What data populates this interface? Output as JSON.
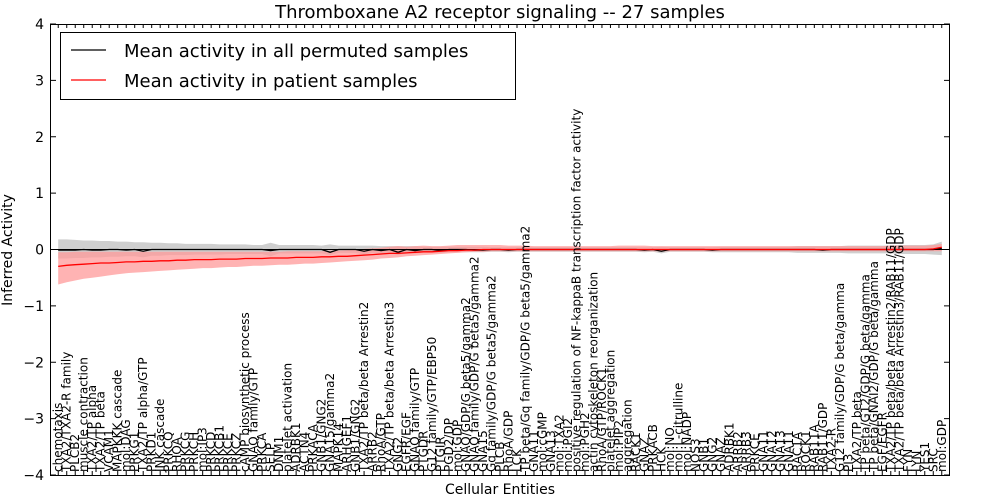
{
  "chart_data": {
    "type": "line",
    "title": "Thromboxane A2 receptor signaling -- 27 samples",
    "xlabel": "Cellular Entities",
    "ylabel": "Inferred Activity",
    "ylim": [
      -4,
      4
    ],
    "yticks": [
      "4",
      "3",
      "2",
      "1",
      "0",
      "−1",
      "−2",
      "−3",
      "−4"
    ],
    "grid": false,
    "legend_position": "top-left",
    "colors": {
      "all": "#000000",
      "all_band": "#bfbfbf",
      "patient": "#ff0000",
      "patient_band": "#ff9a9a"
    },
    "categories": [
      "chemotaxis",
      "TXA2/TXA2-R family",
      "PLCB2",
      "muscle contraction",
      "TXA2/TP alpha",
      "TXA2/TP beta",
      "VCAM1",
      "MAPKKK cascade",
      "mol:DAG",
      "PRKG1",
      "TXA2/TP alpha/GTP",
      "PRKD1",
      "JNK cascade",
      "PRKCQ",
      "RHOA",
      "PRKCG",
      "PRKCH",
      "mol:IP3",
      "PRKCD",
      "PRKCB1",
      "PRKCE",
      "PRKCZ",
      "cAMP biosynthetic process",
      "GNAQ family/GTP",
      "PRKCA",
      "SELP",
      "DNM1",
      "platelet activation",
      "ADRBK1",
      "ACTN4",
      "PRKACA",
      "GNB1/GNG2",
      "GNA15/gamma2",
      "MAPK14",
      "ARHGEF1",
      "GNB1/GNG2",
      "TXA2/TP beta/beta Arrestin2",
      "ARRB2",
      "RhoA/GTP",
      "TXA2/TP beta/beta Arrestin3",
      "GNG2",
      "EGFR/EGF",
      "GNAQ family/GTP",
      "PTGDR",
      "G12 family/GTP/EBP50",
      "PTGIR",
      "PGD2/DP",
      "mol:GDP",
      "GNAQ/GDP/G beta5/gamma2",
      "GNAQ family/GDP/G beta5/gamma2",
      "GNA15",
      "Gq family/GDP/G beta5/gamma2",
      "PLCB",
      "RhoA/GDP",
      "LCK",
      "TP beta/Gq family/GDP/G beta5/gamma2",
      "GNA11",
      "mol:cGMP",
      "GNA13",
      "mol:TXA2",
      "mol:PGI2",
      "positive regulation of NF-kappaB transcription factor activity",
      "mol:PGH2",
      "actin cytoskeleton reorganization",
      "RhoA/GTP/ROCK1",
      "platelet aggregation",
      "mol:PIP2",
      "aggregation",
      "RACK1",
      "GNAZ",
      "PRKACB",
      "HCK",
      "mol:NO",
      "mol:L-citrulline",
      "mol:NADP",
      "NOS3",
      "GNB1",
      "GNG2",
      "GNAZ",
      "ADRBK1",
      "ARRB2",
      "ARRB3",
      "PRKCE",
      "GNA11",
      "GNA12",
      "GNA13",
      "GNA11",
      "RAC1A",
      "ROCK1",
      "RAB11A",
      "RAB11/GDP",
      "TXA2-R",
      "G12 family/GDP/G beta/gamma",
      "PI3",
      "TXA2/TP beta",
      "TP beta/G12/GDP/G beta/gamma",
      "TP beta/GNAI2/GDP/G beta/gamma",
      "EGF/EGFR",
      "TXA2/TP beta/beta Arrestin2/RAB11/GDP",
      "TXA2/TP beta/beta Arrestin3/RAB11/GDP",
      "FYN",
      "LYN",
      "YES1",
      "SRC",
      "mol:GDP"
    ],
    "series": [
      {
        "name": "Mean activity in all permuted samples",
        "line": [
          -0.01,
          -0.01,
          -0.01,
          0.0,
          -0.01,
          -0.01,
          0.0,
          0.0,
          -0.01,
          0.0,
          -0.03,
          0.0,
          0.0,
          0.0,
          0.0,
          0.0,
          0.0,
          0.0,
          0.0,
          0.0,
          0.0,
          0.0,
          0.0,
          0.0,
          0.0,
          -0.02,
          0.0,
          0.0,
          0.0,
          0.0,
          0.0,
          0.0,
          -0.05,
          0.0,
          0.0,
          0.0,
          -0.03,
          0.0,
          -0.02,
          0.0,
          -0.05,
          0.0,
          -0.02,
          0.0,
          0.0,
          -0.02,
          0.0,
          0.0,
          0.0,
          -0.01,
          -0.01,
          0.0,
          0.0,
          -0.01,
          0.0,
          0.0,
          0.0,
          0.0,
          0.0,
          0.0,
          0.0,
          0.0,
          0.0,
          0.0,
          0.0,
          0.0,
          0.0,
          0.0,
          0.0,
          -0.01,
          0.0,
          -0.03,
          0.0,
          0.0,
          0.0,
          0.0,
          0.0,
          -0.01,
          0.0,
          0.0,
          0.0,
          0.0,
          0.0,
          0.0,
          0.0,
          0.0,
          0.0,
          0.0,
          0.0,
          0.0,
          -0.01,
          0.0,
          0.0,
          0.0,
          0.0,
          0.0,
          0.0,
          0.0,
          0.0,
          0.0,
          0.0,
          0.0,
          0.0,
          0.0,
          0.02
        ],
        "band_upper": [
          0.18,
          0.18,
          0.17,
          0.16,
          0.16,
          0.15,
          0.15,
          0.14,
          0.14,
          0.13,
          0.13,
          0.12,
          0.12,
          0.11,
          0.11,
          0.1,
          0.1,
          0.1,
          0.1,
          0.09,
          0.09,
          0.09,
          0.09,
          0.08,
          0.08,
          0.12,
          0.08,
          0.08,
          0.08,
          0.08,
          0.08,
          0.07,
          0.09,
          0.07,
          0.07,
          0.07,
          0.07,
          0.07,
          0.06,
          0.06,
          0.06,
          0.06,
          0.06,
          0.05,
          0.05,
          0.05,
          0.05,
          0.05,
          0.05,
          0.05,
          0.05,
          0.04,
          0.04,
          0.04,
          0.04,
          0.04,
          0.04,
          0.04,
          0.04,
          0.04,
          0.04,
          0.04,
          0.04,
          0.04,
          0.04,
          0.04,
          0.04,
          0.04,
          0.04,
          0.04,
          0.04,
          0.05,
          0.04,
          0.04,
          0.04,
          0.04,
          0.04,
          0.04,
          0.05,
          0.05,
          0.05,
          0.05,
          0.05,
          0.05,
          0.05,
          0.05,
          0.05,
          0.06,
          0.06,
          0.06,
          0.06,
          0.06,
          0.06,
          0.07,
          0.07,
          0.07,
          0.07,
          0.07,
          0.07,
          0.08,
          0.08,
          0.08,
          0.08,
          0.09,
          0.14
        ],
        "band_lower": [
          -0.16,
          -0.16,
          -0.15,
          -0.15,
          -0.14,
          -0.14,
          -0.13,
          -0.13,
          -0.12,
          -0.12,
          -0.14,
          -0.11,
          -0.11,
          -0.1,
          -0.1,
          -0.1,
          -0.09,
          -0.09,
          -0.09,
          -0.09,
          -0.08,
          -0.08,
          -0.08,
          -0.08,
          -0.08,
          -0.12,
          -0.07,
          -0.07,
          -0.07,
          -0.07,
          -0.07,
          -0.07,
          -0.1,
          -0.06,
          -0.06,
          -0.06,
          -0.09,
          -0.06,
          -0.08,
          -0.06,
          -0.1,
          -0.05,
          -0.07,
          -0.05,
          -0.05,
          -0.06,
          -0.05,
          -0.05,
          -0.05,
          -0.05,
          -0.05,
          -0.04,
          -0.04,
          -0.05,
          -0.04,
          -0.04,
          -0.04,
          -0.04,
          -0.04,
          -0.04,
          -0.04,
          -0.04,
          -0.04,
          -0.04,
          -0.04,
          -0.04,
          -0.04,
          -0.04,
          -0.04,
          -0.05,
          -0.04,
          -0.07,
          -0.04,
          -0.04,
          -0.04,
          -0.04,
          -0.04,
          -0.05,
          -0.05,
          -0.05,
          -0.05,
          -0.05,
          -0.05,
          -0.05,
          -0.05,
          -0.05,
          -0.05,
          -0.06,
          -0.06,
          -0.06,
          -0.06,
          -0.06,
          -0.06,
          -0.07,
          -0.07,
          -0.07,
          -0.07,
          -0.07,
          -0.07,
          -0.08,
          -0.08,
          -0.08,
          -0.08,
          -0.09,
          -0.1
        ]
      },
      {
        "name": "Mean activity in patient samples",
        "line": [
          -0.3,
          -0.28,
          -0.27,
          -0.26,
          -0.25,
          -0.24,
          -0.24,
          -0.23,
          -0.22,
          -0.22,
          -0.21,
          -0.21,
          -0.2,
          -0.2,
          -0.19,
          -0.19,
          -0.18,
          -0.18,
          -0.18,
          -0.17,
          -0.17,
          -0.17,
          -0.16,
          -0.16,
          -0.16,
          -0.15,
          -0.15,
          -0.15,
          -0.14,
          -0.14,
          -0.14,
          -0.13,
          -0.13,
          -0.12,
          -0.12,
          -0.11,
          -0.1,
          -0.09,
          -0.08,
          -0.07,
          -0.07,
          -0.06,
          -0.05,
          -0.04,
          -0.04,
          -0.03,
          -0.02,
          -0.02,
          -0.01,
          -0.01,
          0.0,
          0.0,
          0.0,
          0.0,
          0.0,
          0.0,
          0.0,
          0.0,
          0.0,
          0.0,
          0.0,
          0.0,
          0.0,
          0.0,
          0.0,
          0.0,
          0.0,
          0.0,
          0.0,
          0.0,
          0.0,
          0.0,
          0.0,
          0.0,
          0.0,
          0.0,
          0.0,
          0.0,
          0.0,
          0.0,
          0.0,
          0.0,
          0.0,
          0.0,
          0.0,
          0.0,
          0.0,
          0.0,
          0.0,
          0.0,
          0.0,
          0.0,
          0.0,
          0.0,
          0.0,
          0.0,
          0.0,
          0.0,
          0.0,
          0.0,
          0.0,
          0.0,
          0.0,
          0.01,
          0.04
        ],
        "band_upper": [
          -0.05,
          -0.05,
          -0.04,
          -0.04,
          -0.04,
          -0.04,
          -0.04,
          -0.04,
          -0.04,
          -0.04,
          -0.04,
          -0.04,
          -0.04,
          -0.04,
          -0.04,
          -0.04,
          -0.04,
          -0.04,
          -0.04,
          -0.04,
          -0.04,
          -0.04,
          -0.04,
          -0.04,
          -0.04,
          -0.04,
          -0.04,
          -0.03,
          -0.03,
          -0.03,
          -0.03,
          -0.03,
          -0.02,
          -0.02,
          -0.01,
          0.0,
          0.01,
          0.02,
          0.03,
          0.05,
          0.06,
          0.05,
          0.06,
          0.07,
          0.06,
          0.06,
          0.07,
          0.08,
          0.08,
          0.08,
          0.08,
          0.08,
          0.08,
          0.07,
          0.07,
          0.07,
          0.06,
          0.06,
          0.06,
          0.06,
          0.06,
          0.06,
          0.06,
          0.06,
          0.06,
          0.06,
          0.07,
          0.07,
          0.07,
          0.07,
          0.06,
          0.06,
          0.06,
          0.06,
          0.06,
          0.06,
          0.06,
          0.06,
          0.06,
          0.06,
          0.06,
          0.06,
          0.06,
          0.06,
          0.06,
          0.06,
          0.06,
          0.06,
          0.06,
          0.06,
          0.06,
          0.06,
          0.06,
          0.06,
          0.06,
          0.06,
          0.06,
          0.06,
          0.07,
          0.07,
          0.07,
          0.07,
          0.07,
          0.08,
          0.1
        ],
        "band_lower": [
          -0.62,
          -0.58,
          -0.55,
          -0.52,
          -0.5,
          -0.48,
          -0.46,
          -0.44,
          -0.42,
          -0.41,
          -0.4,
          -0.39,
          -0.38,
          -0.37,
          -0.36,
          -0.35,
          -0.34,
          -0.33,
          -0.33,
          -0.32,
          -0.31,
          -0.31,
          -0.3,
          -0.29,
          -0.29,
          -0.28,
          -0.27,
          -0.27,
          -0.26,
          -0.25,
          -0.25,
          -0.24,
          -0.23,
          -0.22,
          -0.21,
          -0.2,
          -0.19,
          -0.18,
          -0.16,
          -0.15,
          -0.14,
          -0.12,
          -0.11,
          -0.1,
          -0.09,
          -0.08,
          -0.07,
          -0.06,
          -0.05,
          -0.04,
          -0.04,
          -0.03,
          -0.03,
          -0.03,
          -0.03,
          -0.03,
          -0.03,
          -0.03,
          -0.03,
          -0.03,
          -0.03,
          -0.03,
          -0.03,
          -0.03,
          -0.03,
          -0.03,
          -0.03,
          -0.03,
          -0.03,
          -0.03,
          -0.03,
          -0.03,
          -0.03,
          -0.03,
          -0.03,
          -0.03,
          -0.03,
          -0.03,
          -0.03,
          -0.03,
          -0.03,
          -0.03,
          -0.03,
          -0.03,
          -0.03,
          -0.03,
          -0.03,
          -0.03,
          -0.03,
          -0.03,
          -0.03,
          -0.03,
          -0.03,
          -0.03,
          -0.03,
          -0.03,
          -0.03,
          -0.03,
          -0.03,
          -0.03,
          -0.03,
          -0.03,
          -0.03,
          -0.03,
          -0.03
        ]
      }
    ]
  }
}
